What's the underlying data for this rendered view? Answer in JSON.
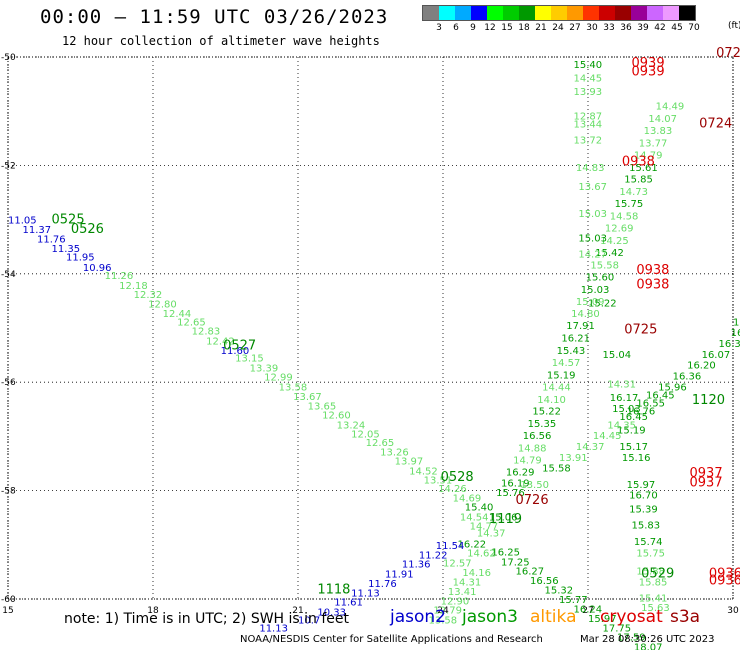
{
  "header": {
    "title": "00:00 – 11:59 UTC 03/26/2023",
    "subtitle": "12 hour collection of altimeter wave heights"
  },
  "legend": {
    "colors": [
      "#808080",
      "#00ffff",
      "#00aaff",
      "#0000ff",
      "#00ff00",
      "#00cc00",
      "#009900",
      "#ffff00",
      "#ffcc00",
      "#ff9900",
      "#ff3300",
      "#cc0000",
      "#990000",
      "#990099",
      "#cc66ff",
      "#ee99ff",
      "#000000"
    ],
    "labels": [
      "3",
      "6",
      "9",
      "12",
      "15",
      "18",
      "21",
      "24",
      "27",
      "30",
      "33",
      "36",
      "39",
      "42",
      "45",
      "70"
    ],
    "unit": "(ft)"
  },
  "map": {
    "lon_ticks": [
      "15",
      "18",
      "21",
      "24",
      "27",
      "30"
    ],
    "lat_ticks": [
      "-50",
      "-52",
      "-54",
      "-56",
      "-58",
      "-60"
    ],
    "lon_range": [
      15,
      30
    ],
    "lat_range": [
      -60,
      -50
    ]
  },
  "chart_data": {
    "type": "scatter",
    "x_axis": "longitude",
    "y_axis": "latitude",
    "time_labels": [
      {
        "text": "0525",
        "lon": 15.9,
        "lat": -53.07,
        "color": "#008800"
      },
      {
        "text": "0526",
        "lon": 16.3,
        "lat": -53.25,
        "color": "#008800"
      },
      {
        "text": "0527",
        "lon": 19.45,
        "lat": -55.4,
        "color": "#008800"
      },
      {
        "text": "0528",
        "lon": 23.95,
        "lat": -57.82,
        "color": "#008800"
      },
      {
        "text": "1119",
        "lon": 24.95,
        "lat": -58.6,
        "color": "#008800"
      },
      {
        "text": "1118",
        "lon": 21.4,
        "lat": -59.9,
        "color": "#008800"
      },
      {
        "text": "0529",
        "lon": 28.1,
        "lat": -59.6,
        "color": "#008800"
      },
      {
        "text": "1120",
        "lon": 29.15,
        "lat": -56.4,
        "color": "#008800"
      },
      {
        "text": "0726",
        "lon": 25.5,
        "lat": -58.25,
        "color": "#990000"
      },
      {
        "text": "0725",
        "lon": 27.75,
        "lat": -55.1,
        "color": "#990000"
      },
      {
        "text": "0724",
        "lon": 29.3,
        "lat": -51.3,
        "color": "#990000"
      },
      {
        "text": "072",
        "lon": 29.65,
        "lat": -50.0,
        "color": "#990000"
      },
      {
        "text": "0939",
        "lon": 27.9,
        "lat": -50.18,
        "color": "#dd0000"
      },
      {
        "text": "0939",
        "lon": 27.9,
        "lat": -50.34,
        "color": "#dd0000"
      },
      {
        "text": "0938",
        "lon": 27.7,
        "lat": -52.0,
        "color": "#dd0000"
      },
      {
        "text": "0938",
        "lon": 28.0,
        "lat": -54.0,
        "color": "#dd0000"
      },
      {
        "text": "0938",
        "lon": 28.0,
        "lat": -54.27,
        "color": "#dd0000"
      },
      {
        "text": "0937",
        "lon": 29.1,
        "lat": -57.75,
        "color": "#dd0000"
      },
      {
        "text": "0937",
        "lon": 29.1,
        "lat": -57.92,
        "color": "#dd0000"
      },
      {
        "text": "0936",
        "lon": 29.5,
        "lat": -59.6,
        "color": "#dd0000"
      },
      {
        "text": "0936",
        "lon": 29.5,
        "lat": -59.73,
        "color": "#dd0000"
      }
    ],
    "points": [
      {
        "lon": 15.0,
        "lat": -53.07,
        "v": "11.05",
        "c": "#0000cc"
      },
      {
        "lon": 15.3,
        "lat": -53.25,
        "v": "11.37",
        "c": "#0000cc"
      },
      {
        "lon": 15.6,
        "lat": -53.42,
        "v": "11.76",
        "c": "#0000cc"
      },
      {
        "lon": 15.9,
        "lat": -53.6,
        "v": "11.35",
        "c": "#0000cc"
      },
      {
        "lon": 16.2,
        "lat": -53.75,
        "v": "11.95",
        "c": "#0000cc"
      },
      {
        "lon": 16.55,
        "lat": -53.95,
        "v": "10.96",
        "c": "#0000cc"
      },
      {
        "lon": 17.0,
        "lat": -54.1,
        "v": "11.26",
        "c": "#66dd66"
      },
      {
        "lon": 17.3,
        "lat": -54.28,
        "v": "12.18",
        "c": "#66dd66"
      },
      {
        "lon": 17.6,
        "lat": -54.45,
        "v": "12.32",
        "c": "#66dd66"
      },
      {
        "lon": 17.9,
        "lat": -54.62,
        "v": "12.80",
        "c": "#66dd66"
      },
      {
        "lon": 18.2,
        "lat": -54.8,
        "v": "12.44",
        "c": "#66dd66"
      },
      {
        "lon": 18.5,
        "lat": -54.95,
        "v": "12.65",
        "c": "#66dd66"
      },
      {
        "lon": 18.8,
        "lat": -55.12,
        "v": "12.83",
        "c": "#66dd66"
      },
      {
        "lon": 19.1,
        "lat": -55.3,
        "v": "12.42",
        "c": "#66dd66"
      },
      {
        "lon": 19.4,
        "lat": -55.48,
        "v": "11.60",
        "c": "#0000cc"
      },
      {
        "lon": 19.7,
        "lat": -55.62,
        "v": "13.15",
        "c": "#66dd66"
      },
      {
        "lon": 20.0,
        "lat": -55.8,
        "v": "13.39",
        "c": "#66dd66"
      },
      {
        "lon": 20.3,
        "lat": -55.97,
        "v": "12.99",
        "c": "#66dd66"
      },
      {
        "lon": 20.6,
        "lat": -56.15,
        "v": "13.58",
        "c": "#66dd66"
      },
      {
        "lon": 20.9,
        "lat": -56.33,
        "v": "13.67",
        "c": "#66dd66"
      },
      {
        "lon": 21.2,
        "lat": -56.5,
        "v": "13.65",
        "c": "#66dd66"
      },
      {
        "lon": 21.5,
        "lat": -56.67,
        "v": "12.60",
        "c": "#66dd66"
      },
      {
        "lon": 21.8,
        "lat": -56.85,
        "v": "13.24",
        "c": "#66dd66"
      },
      {
        "lon": 22.1,
        "lat": -57.02,
        "v": "12.05",
        "c": "#66dd66"
      },
      {
        "lon": 22.4,
        "lat": -57.18,
        "v": "12.65",
        "c": "#66dd66"
      },
      {
        "lon": 22.7,
        "lat": -57.35,
        "v": "13.26",
        "c": "#66dd66"
      },
      {
        "lon": 23.0,
        "lat": -57.52,
        "v": "13.97",
        "c": "#66dd66"
      },
      {
        "lon": 23.3,
        "lat": -57.7,
        "v": "14.52",
        "c": "#66dd66"
      },
      {
        "lon": 23.6,
        "lat": -57.87,
        "v": "13.51",
        "c": "#66dd66"
      },
      {
        "lon": 23.9,
        "lat": -58.03,
        "v": "14.26",
        "c": "#66dd66"
      },
      {
        "lon": 24.2,
        "lat": -58.2,
        "v": "14.69",
        "c": "#66dd66"
      },
      {
        "lon": 24.45,
        "lat": -58.37,
        "v": "15.40",
        "c": "#009900"
      },
      {
        "lon": 24.35,
        "lat": -58.55,
        "v": "14.54",
        "c": "#66dd66"
      },
      {
        "lon": 24.55,
        "lat": -58.72,
        "v": "14.77",
        "c": "#66dd66"
      },
      {
        "lon": 24.3,
        "lat": -59.05,
        "v": "16.22",
        "c": "#009900"
      },
      {
        "lon": 24.5,
        "lat": -59.22,
        "v": "14.62",
        "c": "#66dd66"
      },
      {
        "lon": 24.0,
        "lat": -59.4,
        "v": "12.57",
        "c": "#66dd66"
      },
      {
        "lon": 24.4,
        "lat": -59.58,
        "v": "14.16",
        "c": "#66dd66"
      },
      {
        "lon": 24.2,
        "lat": -59.75,
        "v": "14.31",
        "c": "#66dd66"
      },
      {
        "lon": 24.1,
        "lat": -59.93,
        "v": "13.41",
        "c": "#66dd66"
      },
      {
        "lon": 23.95,
        "lat": -60.1,
        "v": "12.90",
        "c": "#66dd66"
      },
      {
        "lon": 23.8,
        "lat": -60.27,
        "v": "12.79",
        "c": "#66dd66"
      },
      {
        "lon": 23.7,
        "lat": -60.45,
        "v": "13.58",
        "c": "#66dd66"
      },
      {
        "lon": 20.2,
        "lat": -60.6,
        "v": "11.13",
        "c": "#0000cc"
      },
      {
        "lon": 21.0,
        "lat": -60.45,
        "v": "10.7",
        "c": "#0000cc"
      },
      {
        "lon": 21.4,
        "lat": -60.3,
        "v": "10.33",
        "c": "#0000cc"
      },
      {
        "lon": 21.75,
        "lat": -60.12,
        "v": "11.61",
        "c": "#0000cc"
      },
      {
        "lon": 22.1,
        "lat": -59.95,
        "v": "11.13",
        "c": "#0000cc"
      },
      {
        "lon": 22.45,
        "lat": -59.78,
        "v": "11.76",
        "c": "#0000cc"
      },
      {
        "lon": 22.8,
        "lat": -59.6,
        "v": "11.91",
        "c": "#0000cc"
      },
      {
        "lon": 23.15,
        "lat": -59.42,
        "v": "11.36",
        "c": "#0000cc"
      },
      {
        "lon": 23.5,
        "lat": -59.25,
        "v": "11.22",
        "c": "#0000cc"
      },
      {
        "lon": 23.85,
        "lat": -59.08,
        "v": "11.54",
        "c": "#0000cc"
      },
      {
        "lon": 24.95,
        "lat": -58.55,
        "v": "15.06",
        "c": "#009900"
      },
      {
        "lon": 24.7,
        "lat": -58.85,
        "v": "14.37",
        "c": "#66dd66"
      },
      {
        "lon": 25.0,
        "lat": -59.2,
        "v": "16.25",
        "c": "#009900"
      },
      {
        "lon": 25.2,
        "lat": -59.38,
        "v": "17.25",
        "c": "#009900"
      },
      {
        "lon": 25.5,
        "lat": -59.55,
        "v": "16.27",
        "c": "#009900"
      },
      {
        "lon": 25.8,
        "lat": -59.72,
        "v": "16.56",
        "c": "#009900"
      },
      {
        "lon": 26.1,
        "lat": -59.9,
        "v": "15.32",
        "c": "#009900"
      },
      {
        "lon": 26.4,
        "lat": -60.07,
        "v": "15.77",
        "c": "#009900"
      },
      {
        "lon": 26.7,
        "lat": -60.25,
        "v": "16.24",
        "c": "#009900"
      },
      {
        "lon": 27.0,
        "lat": -60.42,
        "v": "15.97",
        "c": "#009900"
      },
      {
        "lon": 27.3,
        "lat": -60.6,
        "v": "17.75",
        "c": "#009900"
      },
      {
        "lon": 27.6,
        "lat": -60.77,
        "v": "17.59",
        "c": "#009900"
      },
      {
        "lon": 27.95,
        "lat": -60.95,
        "v": "18.07",
        "c": "#009900"
      },
      {
        "lon": 28.2,
        "lat": -61.12,
        "v": "17.53",
        "c": "#66dd66"
      },
      {
        "lon": 25.1,
        "lat": -58.1,
        "v": "15.76",
        "c": "#009900"
      },
      {
        "lon": 25.2,
        "lat": -57.92,
        "v": "16.19",
        "c": "#009900"
      },
      {
        "lon": 25.3,
        "lat": -57.72,
        "v": "16.29",
        "c": "#009900"
      },
      {
        "lon": 25.45,
        "lat": -57.5,
        "v": "14.79",
        "c": "#66dd66"
      },
      {
        "lon": 25.55,
        "lat": -57.28,
        "v": "14.88",
        "c": "#66dd66"
      },
      {
        "lon": 25.65,
        "lat": -57.05,
        "v": "16.56",
        "c": "#009900"
      },
      {
        "lon": 25.75,
        "lat": -56.83,
        "v": "15.35",
        "c": "#009900"
      },
      {
        "lon": 25.85,
        "lat": -56.6,
        "v": "15.22",
        "c": "#009900"
      },
      {
        "lon": 25.95,
        "lat": -56.38,
        "v": "14.10",
        "c": "#66dd66"
      },
      {
        "lon": 26.05,
        "lat": -56.15,
        "v": "14.44",
        "c": "#66dd66"
      },
      {
        "lon": 26.15,
        "lat": -55.93,
        "v": "15.19",
        "c": "#009900"
      },
      {
        "lon": 26.25,
        "lat": -55.7,
        "v": "14.57",
        "c": "#66dd66"
      },
      {
        "lon": 26.35,
        "lat": -55.48,
        "v": "15.43",
        "c": "#009900"
      },
      {
        "lon": 26.45,
        "lat": -55.25,
        "v": "16.21",
        "c": "#009900"
      },
      {
        "lon": 26.55,
        "lat": -55.02,
        "v": "17.91",
        "c": "#009900"
      },
      {
        "lon": 26.65,
        "lat": -54.8,
        "v": "14.80",
        "c": "#66dd66"
      },
      {
        "lon": 26.75,
        "lat": -54.58,
        "v": "15.09",
        "c": "#66dd66"
      },
      {
        "lon": 26.85,
        "lat": -54.35,
        "v": "15.03",
        "c": "#009900"
      },
      {
        "lon": 26.95,
        "lat": -54.12,
        "v": "15.60",
        "c": "#009900"
      },
      {
        "lon": 27.05,
        "lat": -53.9,
        "v": "15.58",
        "c": "#66dd66"
      },
      {
        "lon": 27.15,
        "lat": -53.67,
        "v": "15.42",
        "c": "#009900"
      },
      {
        "lon": 27.25,
        "lat": -53.45,
        "v": "14.25",
        "c": "#66dd66"
      },
      {
        "lon": 27.35,
        "lat": -53.22,
        "v": "12.69",
        "c": "#66dd66"
      },
      {
        "lon": 27.45,
        "lat": -53.0,
        "v": "14.58",
        "c": "#66dd66"
      },
      {
        "lon": 27.55,
        "lat": -52.77,
        "v": "15.75",
        "c": "#009900"
      },
      {
        "lon": 27.65,
        "lat": -52.55,
        "v": "14.73",
        "c": "#66dd66"
      },
      {
        "lon": 27.75,
        "lat": -52.32,
        "v": "15.85",
        "c": "#009900"
      },
      {
        "lon": 27.85,
        "lat": -52.1,
        "v": "15.61",
        "c": "#009900"
      },
      {
        "lon": 27.95,
        "lat": -51.87,
        "v": "14.79",
        "c": "#66dd66"
      },
      {
        "lon": 28.05,
        "lat": -51.65,
        "v": "13.77",
        "c": "#66dd66"
      },
      {
        "lon": 28.15,
        "lat": -51.42,
        "v": "13.83",
        "c": "#66dd66"
      },
      {
        "lon": 28.25,
        "lat": -51.2,
        "v": "14.07",
        "c": "#66dd66"
      },
      {
        "lon": 28.4,
        "lat": -50.97,
        "v": "14.49",
        "c": "#66dd66"
      },
      {
        "lon": 26.7,
        "lat": -50.2,
        "v": "15.40",
        "c": "#009900"
      },
      {
        "lon": 26.7,
        "lat": -50.45,
        "v": "14.45",
        "c": "#66dd66"
      },
      {
        "lon": 26.7,
        "lat": -50.7,
        "v": "13.93",
        "c": "#66dd66"
      },
      {
        "lon": 26.7,
        "lat": -51.15,
        "v": "12.87",
        "c": "#66dd66"
      },
      {
        "lon": 26.7,
        "lat": -51.3,
        "v": "13.44",
        "c": "#66dd66"
      },
      {
        "lon": 26.7,
        "lat": -51.6,
        "v": "13.72",
        "c": "#66dd66"
      },
      {
        "lon": 26.75,
        "lat": -52.1,
        "v": "14.83",
        "c": "#66dd66"
      },
      {
        "lon": 26.8,
        "lat": -52.45,
        "v": "13.67",
        "c": "#66dd66"
      },
      {
        "lon": 26.8,
        "lat": -52.95,
        "v": "15.03",
        "c": "#66dd66"
      },
      {
        "lon": 26.8,
        "lat": -53.4,
        "v": "15.03",
        "c": "#009900"
      },
      {
        "lon": 26.8,
        "lat": -53.7,
        "v": "14.27",
        "c": "#66dd66"
      },
      {
        "lon": 27.0,
        "lat": -54.6,
        "v": "15.22",
        "c": "#009900"
      },
      {
        "lon": 27.3,
        "lat": -55.55,
        "v": "15.04",
        "c": "#009900"
      },
      {
        "lon": 27.4,
        "lat": -56.1,
        "v": "14.31",
        "c": "#66dd66"
      },
      {
        "lon": 27.45,
        "lat": -56.35,
        "v": "16.17",
        "c": "#009900"
      },
      {
        "lon": 27.5,
        "lat": -56.55,
        "v": "15.03",
        "c": "#009900"
      },
      {
        "lon": 27.6,
        "lat": -56.95,
        "v": "15.19",
        "c": "#009900"
      },
      {
        "lon": 27.65,
        "lat": -57.25,
        "v": "15.17",
        "c": "#009900"
      },
      {
        "lon": 27.7,
        "lat": -57.45,
        "v": "15.16",
        "c": "#009900"
      },
      {
        "lon": 27.8,
        "lat": -57.95,
        "v": "15.97",
        "c": "#009900"
      },
      {
        "lon": 27.85,
        "lat": -58.15,
        "v": "16.70",
        "c": "#009900"
      },
      {
        "lon": 27.85,
        "lat": -58.4,
        "v": "15.39",
        "c": "#009900"
      },
      {
        "lon": 27.9,
        "lat": -58.7,
        "v": "15.83",
        "c": "#009900"
      },
      {
        "lon": 27.95,
        "lat": -59.0,
        "v": "15.74",
        "c": "#009900"
      },
      {
        "lon": 28.0,
        "lat": -59.22,
        "v": "15.75",
        "c": "#66dd66"
      },
      {
        "lon": 28.0,
        "lat": -59.55,
        "v": "15.88",
        "c": "#66dd66"
      },
      {
        "lon": 28.05,
        "lat": -59.75,
        "v": "15.85",
        "c": "#66dd66"
      },
      {
        "lon": 28.05,
        "lat": -60.05,
        "v": "15.41",
        "c": "#66dd66"
      },
      {
        "lon": 28.1,
        "lat": -60.22,
        "v": "15.63",
        "c": "#66dd66"
      },
      {
        "lon": 27.65,
        "lat": -56.7,
        "v": "16.45",
        "c": "#009900"
      },
      {
        "lon": 27.8,
        "lat": -56.6,
        "v": "16.76",
        "c": "#009900"
      },
      {
        "lon": 28.0,
        "lat": -56.45,
        "v": "16.55",
        "c": "#009900"
      },
      {
        "lon": 28.2,
        "lat": -56.3,
        "v": "16.45",
        "c": "#009900"
      },
      {
        "lon": 28.45,
        "lat": -56.15,
        "v": "15.96",
        "c": "#009900"
      },
      {
        "lon": 28.75,
        "lat": -55.95,
        "v": "16.36",
        "c": "#009900"
      },
      {
        "lon": 29.05,
        "lat": -55.75,
        "v": "16.20",
        "c": "#009900"
      },
      {
        "lon": 29.35,
        "lat": -55.55,
        "v": "16.07",
        "c": "#009900"
      },
      {
        "lon": 29.7,
        "lat": -55.35,
        "v": "16.35",
        "c": "#009900"
      },
      {
        "lon": 29.95,
        "lat": -55.15,
        "v": "16.36",
        "c": "#009900"
      },
      {
        "lon": 30.0,
        "lat": -54.95,
        "v": "15",
        "c": "#009900"
      },
      {
        "lon": 26.05,
        "lat": -57.65,
        "v": "15.58",
        "c": "#009900"
      },
      {
        "lon": 26.4,
        "lat": -57.45,
        "v": "13.91",
        "c": "#66dd66"
      },
      {
        "lon": 26.75,
        "lat": -57.25,
        "v": "14.37",
        "c": "#66dd66"
      },
      {
        "lon": 27.1,
        "lat": -57.05,
        "v": "14.45",
        "c": "#66dd66"
      },
      {
        "lon": 27.4,
        "lat": -56.85,
        "v": "14.35",
        "c": "#66dd66"
      },
      {
        "lon": 25.6,
        "lat": -57.95,
        "v": "13.50",
        "c": "#66dd66"
      }
    ]
  },
  "footer": {
    "note": "note:  1) Time is in UTC;  2) SWH is in feet",
    "satellites": [
      {
        "name": "jason2",
        "color": "#0000cc"
      },
      {
        "name": "jason3",
        "color": "#009900"
      },
      {
        "name": "altika",
        "color": "#ff9900"
      },
      {
        "name": "cryosat",
        "color": "#dd0000"
      },
      {
        "name": "s3a",
        "color": "#990000"
      }
    ],
    "credit": "NOAA/NESDIS Center for Satellite Applications and Research",
    "timestamp": "Mar 28 08:30:26 UTC 2023"
  }
}
